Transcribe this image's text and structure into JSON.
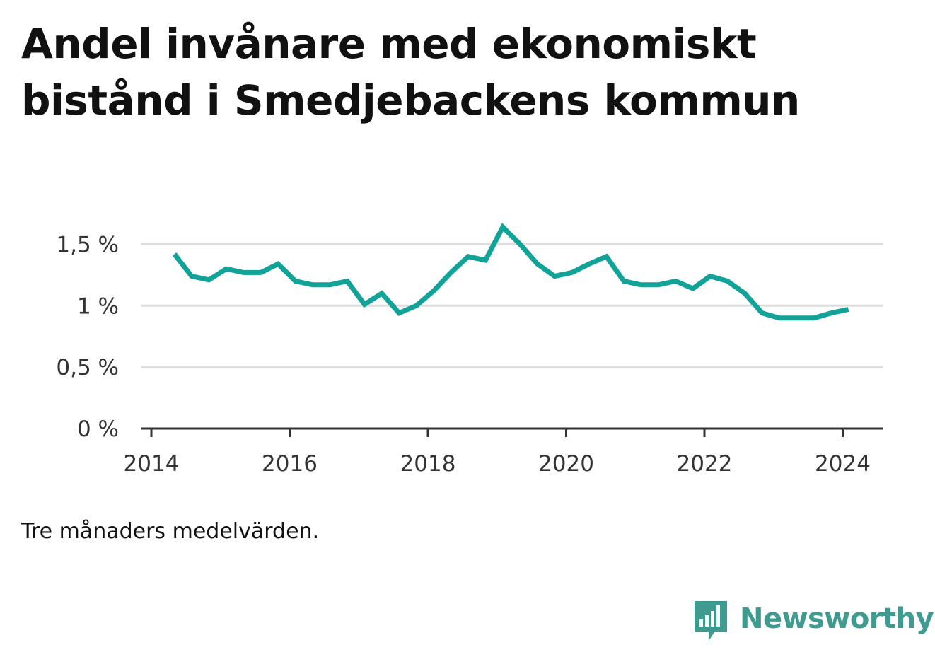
{
  "title": "Andel invånare med ekonomiskt bistånd i Smedjebackens kommun",
  "note": "Tre månaders medelvärden.",
  "brand": {
    "name": "Newsworthy",
    "icon": "newsworthy-logo-icon",
    "color": "#3f9a90"
  },
  "chart_data": {
    "type": "line",
    "title": "Andel invånare med ekonomiskt bistånd i Smedjebackens kommun",
    "xlabel": "",
    "ylabel": "",
    "x_ticks": [
      "2014",
      "2016",
      "2018",
      "2020",
      "2022",
      "2024"
    ],
    "y_ticks": [
      "0 %",
      "0,5 %",
      "1 %",
      "1,5 %"
    ],
    "y_tick_values": [
      0,
      0.5,
      1.0,
      1.5
    ],
    "xlim": [
      2014.0,
      2024.35
    ],
    "ylim": [
      0,
      1.75
    ],
    "grid": "horizontal",
    "line_color": "#12a398",
    "series": [
      {
        "x": [
          "2014-05",
          "2014-08",
          "2014-11",
          "2015-02",
          "2015-05",
          "2015-08",
          "2015-11",
          "2016-02",
          "2016-05",
          "2016-08",
          "2016-11",
          "2017-02",
          "2017-05",
          "2017-08",
          "2017-11",
          "2018-02",
          "2018-05",
          "2018-08",
          "2018-11",
          "2019-02",
          "2019-05",
          "2019-08",
          "2019-11",
          "2020-02",
          "2020-05",
          "2020-08",
          "2020-11",
          "2021-02",
          "2021-05",
          "2021-08",
          "2021-11",
          "2022-02",
          "2022-05",
          "2022-08",
          "2022-11",
          "2023-02",
          "2023-05",
          "2023-08",
          "2023-11",
          "2024-02"
        ],
        "values": [
          1.42,
          1.24,
          1.21,
          1.3,
          1.27,
          1.27,
          1.34,
          1.2,
          1.17,
          1.17,
          1.2,
          1.01,
          1.1,
          0.94,
          1.0,
          1.12,
          1.27,
          1.4,
          1.37,
          1.64,
          1.5,
          1.34,
          1.24,
          1.27,
          1.34,
          1.4,
          1.2,
          1.17,
          1.17,
          1.2,
          1.14,
          1.24,
          1.2,
          1.1,
          0.94,
          0.9,
          0.9,
          0.9,
          0.94,
          0.97
        ]
      }
    ]
  }
}
